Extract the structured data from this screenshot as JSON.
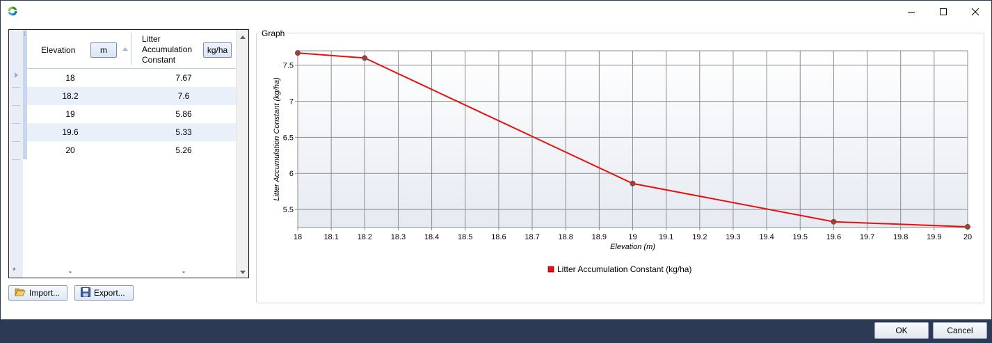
{
  "window": {
    "icons": {
      "app": "app-logo-icon",
      "minimize": "minimize-icon",
      "maximize": "maximize-icon",
      "close": "close-icon"
    }
  },
  "table": {
    "columns": [
      {
        "label": "Elevation",
        "unit": "m"
      },
      {
        "label_lines": [
          "Litter",
          "Accumulation",
          "Constant"
        ],
        "unit": "kg/ha"
      }
    ],
    "rows": [
      {
        "elevation": "18",
        "value": "7.67"
      },
      {
        "elevation": "18.2",
        "value": "7.6"
      },
      {
        "elevation": "19",
        "value": "5.86"
      },
      {
        "elevation": "19.6",
        "value": "5.33"
      },
      {
        "elevation": "20",
        "value": "5.26"
      }
    ],
    "new_row": {
      "marker": "*",
      "elevation": "-",
      "value": "-"
    }
  },
  "buttons": {
    "import_label": "Import...",
    "export_label": "Export...",
    "ok_label": "OK",
    "cancel_label": "Cancel"
  },
  "graph": {
    "group_title": "Graph",
    "series_color": "#e8100f"
  },
  "chart_data": {
    "type": "line",
    "title": "",
    "xlabel": "Elevation (m)",
    "ylabel": "Litter Accumulation Constant (kg/ha)",
    "xlim": [
      18,
      20
    ],
    "ylim": [
      5.25,
      7.7
    ],
    "x_ticks": [
      "18",
      "18.1",
      "18.2",
      "18.3",
      "18.4",
      "18.5",
      "18.6",
      "18.7",
      "18.8",
      "18.9",
      "19",
      "19.1",
      "19.2",
      "19.3",
      "19.4",
      "19.5",
      "19.6",
      "19.7",
      "19.8",
      "19.9",
      "20"
    ],
    "y_ticks": [
      "5.5",
      "6",
      "6.5",
      "7",
      "7.5"
    ],
    "grid": true,
    "legend_position": "bottom-center",
    "series": [
      {
        "name": "Litter Accumulation Constant (kg/ha)",
        "x": [
          18,
          18.2,
          19,
          19.6,
          20
        ],
        "y": [
          7.67,
          7.6,
          5.86,
          5.33,
          5.26
        ]
      }
    ]
  }
}
